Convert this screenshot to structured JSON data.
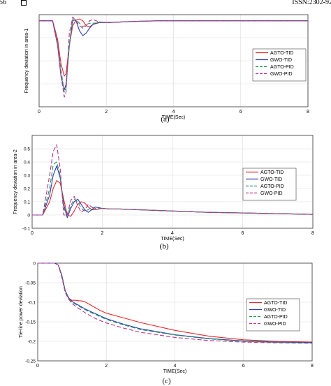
{
  "header": {
    "left": "56",
    "right": "ISSN:2302-92"
  },
  "chart_data": [
    {
      "type": "line",
      "caption": "(a)",
      "xlabel": "TIME(Sec)",
      "ylabel": "Frequency deviation in area-1",
      "xlim": [
        0,
        8
      ],
      "ylim": [
        -0.7,
        0.05
      ],
      "xticks": [
        0,
        2,
        4,
        6,
        8
      ],
      "yticks": [],
      "grid": true,
      "legend": "right",
      "series": [
        {
          "name": "AGTO-TID",
          "color": "#e8262b",
          "dash": "",
          "x": [
            0,
            0.4,
            0.55,
            0.65,
            0.75,
            0.8,
            0.9,
            1.0,
            1.1,
            1.2,
            1.3,
            1.4,
            1.5,
            1.6,
            1.8,
            2.0,
            2.4,
            2.8,
            3.5,
            8
          ],
          "y": [
            0,
            0,
            -0.15,
            -0.35,
            -0.45,
            -0.43,
            -0.2,
            -0.04,
            0.005,
            0.015,
            0.0,
            -0.04,
            -0.05,
            -0.03,
            -0.015,
            -0.015,
            -0.01,
            -0.005,
            0,
            0
          ]
        },
        {
          "name": "GWO-TID",
          "color": "#2d3bb8",
          "dash": "",
          "x": [
            0,
            0.4,
            0.55,
            0.65,
            0.75,
            0.8,
            0.9,
            1.0,
            1.1,
            1.2,
            1.3,
            1.4,
            1.5,
            1.6,
            1.8,
            2.0,
            2.4,
            2.8,
            3.5,
            8
          ],
          "y": [
            0,
            0,
            -0.2,
            -0.45,
            -0.56,
            -0.52,
            -0.2,
            0.01,
            0.0,
            -0.08,
            -0.12,
            -0.1,
            -0.06,
            -0.03,
            -0.01,
            -0.015,
            -0.01,
            -0.005,
            0,
            0
          ]
        },
        {
          "name": "AGTO-PID",
          "color": "#1e9a55",
          "dash": "6,3",
          "x": [
            0,
            0.4,
            0.55,
            0.65,
            0.75,
            0.8,
            0.9,
            1.0,
            1.1,
            1.2,
            1.3,
            1.4,
            1.5,
            1.6,
            1.8,
            2.0,
            2.4,
            2.8,
            3.5,
            8
          ],
          "y": [
            0,
            0,
            -0.18,
            -0.4,
            -0.58,
            -0.55,
            -0.2,
            0.0,
            0.01,
            -0.02,
            -0.05,
            -0.03,
            -0.02,
            -0.02,
            -0.015,
            -0.015,
            -0.01,
            -0.005,
            0,
            0
          ]
        },
        {
          "name": "GWO-PID",
          "color": "#c0308a",
          "dash": "6,3",
          "x": [
            0,
            0.4,
            0.55,
            0.65,
            0.75,
            0.8,
            0.9,
            1.0,
            1.1,
            1.2,
            1.3,
            1.4,
            1.5,
            1.6,
            1.8,
            2.0,
            2.4,
            2.8,
            3.5,
            8
          ],
          "y": [
            0,
            0,
            -0.2,
            -0.45,
            -0.62,
            -0.58,
            -0.1,
            0.03,
            0.0,
            -0.04,
            -0.06,
            -0.04,
            0.0,
            0.01,
            -0.01,
            -0.015,
            -0.01,
            -0.005,
            0,
            0
          ]
        }
      ]
    },
    {
      "type": "line",
      "caption": "(b)",
      "xlabel": "TIME(Sec)",
      "ylabel": "Frequency deviation in area-2",
      "xlim": [
        0,
        8
      ],
      "ylim": [
        -0.1,
        0.6
      ],
      "xticks": [
        0,
        2,
        4,
        6,
        8
      ],
      "yticks": [
        -0.1,
        0,
        0.1,
        0.2,
        0.3,
        0.4,
        0.5
      ],
      "grid": true,
      "legend": "right",
      "series": [
        {
          "name": "AGTO-TID",
          "color": "#e8262b",
          "dash": "",
          "x": [
            0,
            0.3,
            0.5,
            0.6,
            0.7,
            0.8,
            0.9,
            1.0,
            1.1,
            1.2,
            1.3,
            1.4,
            1.5,
            1.6,
            1.7,
            1.8,
            2.0,
            2.2,
            2.5,
            3,
            4,
            5,
            6,
            7,
            8
          ],
          "y": [
            0,
            0,
            0.1,
            0.2,
            0.26,
            0.24,
            0.12,
            0.0,
            -0.01,
            0.03,
            0.08,
            0.1,
            0.09,
            0.06,
            0.04,
            0.04,
            0.05,
            0.045,
            0.045,
            0.04,
            0.03,
            0.02,
            0.015,
            0.01,
            0.005
          ]
        },
        {
          "name": "GWO-TID",
          "color": "#2d3bb8",
          "dash": "",
          "x": [
            0,
            0.3,
            0.5,
            0.6,
            0.7,
            0.8,
            0.9,
            1.0,
            1.1,
            1.2,
            1.3,
            1.4,
            1.5,
            1.6,
            1.7,
            1.8,
            2.0,
            2.2,
            2.5,
            3,
            4,
            5,
            6,
            7,
            8
          ],
          "y": [
            0,
            0,
            0.15,
            0.3,
            0.37,
            0.28,
            0.08,
            -0.02,
            0.05,
            0.1,
            0.12,
            0.08,
            0.04,
            0.02,
            0.04,
            0.06,
            0.05,
            0.045,
            0.045,
            0.04,
            0.03,
            0.02,
            0.015,
            0.01,
            0.005
          ]
        },
        {
          "name": "AGTO-PID",
          "color": "#1e9a55",
          "dash": "6,3",
          "x": [
            0,
            0.3,
            0.5,
            0.6,
            0.7,
            0.8,
            0.9,
            1.0,
            1.1,
            1.2,
            1.3,
            1.4,
            1.5,
            1.6,
            1.7,
            1.8,
            2.0,
            2.2,
            2.5,
            3,
            4,
            5,
            6,
            7,
            8
          ],
          "y": [
            0,
            0,
            0.2,
            0.38,
            0.4,
            0.3,
            0.05,
            0.0,
            0.07,
            0.12,
            0.1,
            0.05,
            0.03,
            0.04,
            0.06,
            0.05,
            0.05,
            0.045,
            0.045,
            0.04,
            0.03,
            0.02,
            0.015,
            0.01,
            0.005
          ]
        },
        {
          "name": "GWO-PID",
          "color": "#c0308a",
          "dash": "6,3",
          "x": [
            0,
            0.3,
            0.5,
            0.6,
            0.7,
            0.8,
            0.9,
            1.0,
            1.1,
            1.2,
            1.3,
            1.4,
            1.5,
            1.6,
            1.7,
            1.8,
            2.0,
            2.2,
            2.5,
            3,
            4,
            5,
            6,
            7,
            8
          ],
          "y": [
            0,
            0,
            0.3,
            0.48,
            0.53,
            0.35,
            0.0,
            0.0,
            0.11,
            0.14,
            0.07,
            0.02,
            0.04,
            0.08,
            0.06,
            0.04,
            0.05,
            0.045,
            0.045,
            0.04,
            0.03,
            0.02,
            0.015,
            0.01,
            0.005
          ]
        }
      ]
    },
    {
      "type": "line",
      "caption": "(c)",
      "xlabel": "TIME(Sec)",
      "ylabel": "Tie-line power deviation",
      "xlim": [
        0,
        8
      ],
      "ylim": [
        -0.25,
        0
      ],
      "xticks": [
        0,
        2,
        4,
        6,
        8
      ],
      "yticks": [
        -0.25,
        -0.2,
        -0.15,
        -0.1,
        -0.05,
        0
      ],
      "grid": true,
      "legend": "right",
      "series": [
        {
          "name": "AGTO-TID",
          "color": "#e8262b",
          "dash": "",
          "x": [
            0,
            0.5,
            0.6,
            0.7,
            0.8,
            0.9,
            1.0,
            1.1,
            1.2,
            1.3,
            1.4,
            1.6,
            1.8,
            2.0,
            2.5,
            3,
            4,
            5,
            6,
            7,
            8
          ],
          "y": [
            0,
            0,
            -0.005,
            -0.03,
            -0.07,
            -0.09,
            -0.095,
            -0.095,
            -0.096,
            -0.097,
            -0.1,
            -0.11,
            -0.12,
            -0.128,
            -0.14,
            -0.152,
            -0.172,
            -0.187,
            -0.196,
            -0.2,
            -0.202
          ]
        },
        {
          "name": "GWO-TID",
          "color": "#2d3bb8",
          "dash": "",
          "x": [
            0,
            0.5,
            0.6,
            0.7,
            0.8,
            0.9,
            1.0,
            1.1,
            1.2,
            1.3,
            1.4,
            1.6,
            1.8,
            2.0,
            2.5,
            3,
            4,
            5,
            6,
            7,
            8
          ],
          "y": [
            0,
            0,
            -0.005,
            -0.03,
            -0.07,
            -0.088,
            -0.098,
            -0.103,
            -0.108,
            -0.113,
            -0.118,
            -0.126,
            -0.134,
            -0.142,
            -0.156,
            -0.168,
            -0.183,
            -0.193,
            -0.199,
            -0.202,
            -0.203
          ]
        },
        {
          "name": "AGTO-PID",
          "color": "#1e9a55",
          "dash": "6,3",
          "x": [
            0,
            0.5,
            0.6,
            0.7,
            0.8,
            0.9,
            1.0,
            1.1,
            1.2,
            1.3,
            1.4,
            1.6,
            1.8,
            2.0,
            2.5,
            3,
            4,
            5,
            6,
            7,
            8
          ],
          "y": [
            0,
            0,
            -0.005,
            -0.03,
            -0.072,
            -0.09,
            -0.1,
            -0.105,
            -0.11,
            -0.115,
            -0.12,
            -0.128,
            -0.136,
            -0.144,
            -0.158,
            -0.17,
            -0.184,
            -0.194,
            -0.2,
            -0.203,
            -0.204
          ]
        },
        {
          "name": "GWO-PID",
          "color": "#c0308a",
          "dash": "6,3",
          "x": [
            0,
            0.5,
            0.6,
            0.7,
            0.8,
            0.9,
            1.0,
            1.1,
            1.2,
            1.3,
            1.4,
            1.6,
            1.8,
            2.0,
            2.5,
            3,
            4,
            5,
            6,
            7,
            8
          ],
          "y": [
            0,
            0,
            -0.005,
            -0.035,
            -0.075,
            -0.092,
            -0.103,
            -0.11,
            -0.116,
            -0.122,
            -0.128,
            -0.138,
            -0.146,
            -0.153,
            -0.166,
            -0.177,
            -0.19,
            -0.198,
            -0.202,
            -0.204,
            -0.205
          ]
        }
      ]
    }
  ]
}
